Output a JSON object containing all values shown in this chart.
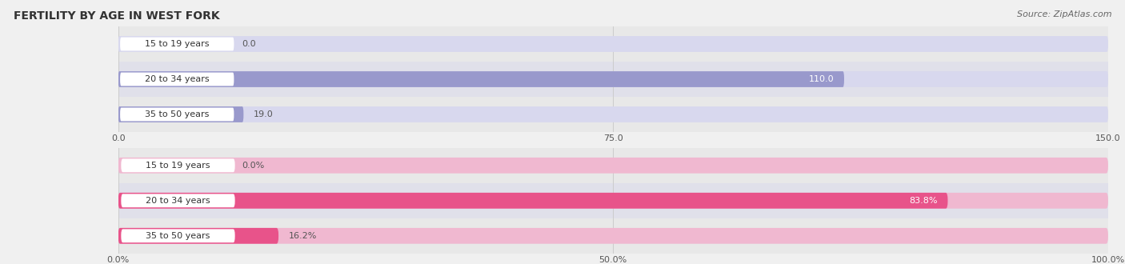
{
  "title": "FERTILITY BY AGE IN WEST FORK",
  "source": "Source: ZipAtlas.com",
  "top_chart": {
    "categories": [
      "15 to 19 years",
      "20 to 34 years",
      "35 to 50 years"
    ],
    "values": [
      0.0,
      110.0,
      19.0
    ],
    "xlim": [
      0,
      150
    ],
    "xticks": [
      0.0,
      75.0,
      150.0
    ],
    "bar_color": "#9999cc",
    "bar_bg_color": "#d8d8ee",
    "label_color_inside": "#ffffff",
    "label_color_outside": "#555555"
  },
  "bottom_chart": {
    "categories": [
      "15 to 19 years",
      "20 to 34 years",
      "35 to 50 years"
    ],
    "values": [
      0.0,
      83.8,
      16.2
    ],
    "xlim": [
      0,
      100
    ],
    "xticks": [
      0.0,
      50.0,
      100.0
    ],
    "xtick_labels": [
      "0.0%",
      "50.0%",
      "100.0%"
    ],
    "bar_color": "#e8538a",
    "bar_bg_color": "#f0b8d0",
    "label_color_inside": "#ffffff",
    "label_color_outside": "#555555"
  },
  "category_label_color": "#333333",
  "category_label_fontsize": 8,
  "value_label_fontsize": 8,
  "title_fontsize": 10,
  "source_fontsize": 8,
  "background_color": "#f0f0f0",
  "bar_height": 0.45,
  "fig_width": 14.06,
  "fig_height": 3.3
}
